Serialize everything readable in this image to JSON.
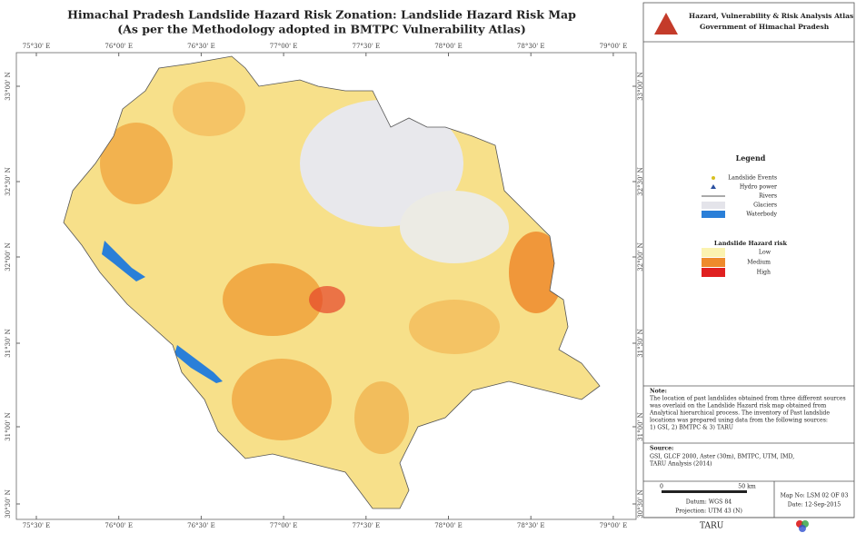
{
  "header": {
    "title": "Himachal Pradesh Landslide Hazard Risk Zonation: Landslide Hazard Risk Map",
    "subtitle": "(As per the Methodology adopted in BMTPC Vulnerability Atlas)"
  },
  "graticule": {
    "longitudes": [
      "75°30' E",
      "76°00' E",
      "76°30' E",
      "77°00' E",
      "77°30' E",
      "78°00' E",
      "78°30' E",
      "79°00' E"
    ],
    "latitudes": [
      "33°00' N",
      "32°30' N",
      "32°00' N",
      "31°30' N",
      "31°00' N",
      "30°30' N"
    ]
  },
  "atlas": {
    "title": "Hazard, Vulnerability & Risk Analysis Atlas",
    "subtitle": "Government of Himachal Pradesh"
  },
  "legend": {
    "title": "Legend",
    "items": [
      "Landslide Events",
      "Hydro power",
      "Rivers",
      "Glaciers",
      "Waterbody"
    ],
    "risk_title": "Landslide Hazard risk",
    "risk_levels": [
      "Low",
      "Medium",
      "High"
    ]
  },
  "note": {
    "heading": "Note:",
    "lines": [
      "The location of past landslides obtained from three different sources",
      "was overlaid on the Landslide Hazard risk map obtained from",
      "Analytical hierarchical process. The inventory of Past landslide",
      "locations was prepared using data from the following sources:",
      "1) GSI, 2) BMTPC & 3) TARU"
    ]
  },
  "source": {
    "heading": "Source:",
    "lines": [
      "GSI, GLCF 2000, Aster (30m), BMTPC, UTM, IMD,",
      "TARU Analysis (2014)"
    ]
  },
  "scale": {
    "start": "0",
    "end": "50 km"
  },
  "projection": {
    "datum": "Datum: WGS 84",
    "projection": "Projection: UTM 43 (N)"
  },
  "map_info": {
    "number": "Map No: LSM 02 OF 03",
    "date": "Date: 12-Sep-2015"
  },
  "footer": {
    "logo": "TARU"
  }
}
